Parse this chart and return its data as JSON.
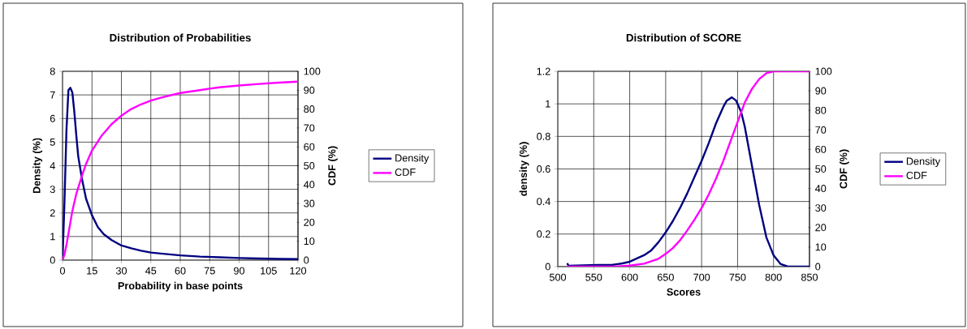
{
  "chart_data": [
    {
      "type": "line",
      "title": "Distribution of Probabilities",
      "xlabel": "Probability in base points",
      "ylabel": "Density (%)",
      "y2label": "CDF (%)",
      "xlim": [
        0,
        120
      ],
      "xticks": [
        0,
        15,
        30,
        45,
        60,
        75,
        90,
        105,
        120
      ],
      "ylim": [
        0,
        8
      ],
      "yticks": [
        0,
        1,
        2,
        3,
        4,
        5,
        6,
        7,
        8
      ],
      "y2lim": [
        0,
        100
      ],
      "y2ticks": [
        0,
        10,
        20,
        30,
        40,
        50,
        60,
        70,
        80,
        90,
        100
      ],
      "grid": true,
      "legend": "right",
      "series": [
        {
          "name": "Density",
          "color": "#000080",
          "x": [
            0,
            1,
            2,
            3,
            4,
            5,
            6,
            7,
            8,
            10,
            12,
            15,
            18,
            21,
            25,
            30,
            35,
            40,
            45,
            50,
            60,
            70,
            80,
            90,
            100,
            110,
            120
          ],
          "values": [
            0,
            2.5,
            5.5,
            7.2,
            7.3,
            7.1,
            6.3,
            5.3,
            4.4,
            3.4,
            2.6,
            1.9,
            1.4,
            1.1,
            0.85,
            0.62,
            0.5,
            0.4,
            0.32,
            0.28,
            0.2,
            0.15,
            0.12,
            0.09,
            0.07,
            0.05,
            0.04
          ]
        },
        {
          "name": "CDF",
          "color": "#ff00ff",
          "axis": "y2",
          "x": [
            0,
            1,
            2,
            3,
            4,
            5,
            7,
            10,
            12,
            15,
            20,
            25,
            30,
            35,
            40,
            45,
            50,
            60,
            70,
            75,
            80,
            90,
            100,
            110,
            120
          ],
          "values": [
            0,
            3,
            8,
            14,
            20,
            26,
            35,
            45,
            51,
            58,
            66,
            72,
            76.5,
            80,
            82.5,
            84.5,
            86,
            88.5,
            90,
            90.8,
            91.5,
            92.5,
            93.3,
            94,
            94.5
          ]
        }
      ]
    },
    {
      "type": "line",
      "title": "Distribution of SCORE",
      "xlabel": "Scores",
      "ylabel": "density (%)",
      "y2label": "CDF (%)",
      "xlim": [
        500,
        850
      ],
      "xticks": [
        500,
        550,
        600,
        650,
        700,
        750,
        800,
        850
      ],
      "ylim": [
        0,
        1.2
      ],
      "yticks": [
        0,
        0.2,
        0.4,
        0.6,
        0.8,
        1,
        1.2
      ],
      "y2lim": [
        0,
        100
      ],
      "y2ticks": [
        0,
        10,
        20,
        30,
        40,
        50,
        60,
        70,
        80,
        90,
        100
      ],
      "grid": true,
      "legend": "right",
      "series": [
        {
          "name": "Density",
          "color": "#000080",
          "x": [
            513,
            515,
            555,
            575,
            590,
            600,
            610,
            620,
            630,
            640,
            650,
            660,
            670,
            680,
            690,
            700,
            710,
            720,
            730,
            735,
            742,
            748,
            755,
            760,
            770,
            780,
            790,
            800,
            810,
            820,
            850
          ],
          "values": [
            0.02,
            0.005,
            0.01,
            0.01,
            0.02,
            0.03,
            0.05,
            0.07,
            0.1,
            0.15,
            0.21,
            0.28,
            0.36,
            0.45,
            0.55,
            0.65,
            0.76,
            0.88,
            0.98,
            1.02,
            1.04,
            1.02,
            0.95,
            0.86,
            0.62,
            0.38,
            0.18,
            0.07,
            0.015,
            0,
            0
          ]
        },
        {
          "name": "CDF",
          "color": "#ff00ff",
          "axis": "y2",
          "x": [
            513,
            580,
            600,
            620,
            640,
            650,
            660,
            670,
            680,
            690,
            700,
            710,
            720,
            730,
            740,
            750,
            760,
            770,
            780,
            790,
            800,
            850
          ],
          "values": [
            0,
            0,
            0.5,
            1.5,
            4,
            6.5,
            9.5,
            13.5,
            18.5,
            24,
            30,
            37,
            45,
            54,
            64,
            74,
            84,
            91,
            96,
            99,
            100,
            100
          ]
        }
      ]
    }
  ]
}
